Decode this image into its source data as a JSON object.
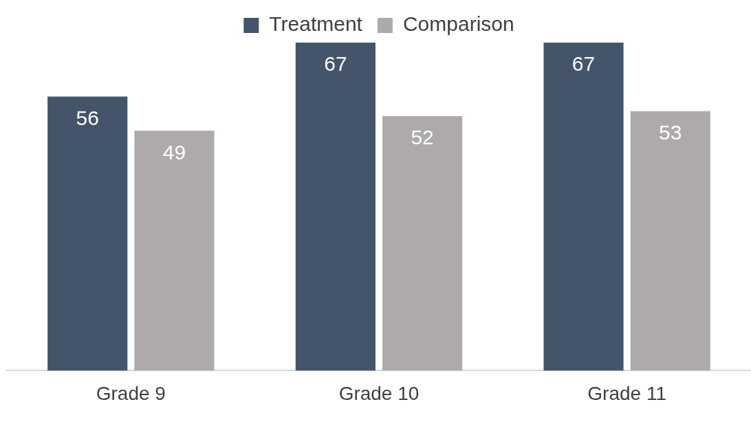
{
  "chart_data": {
    "type": "bar",
    "categories": [
      "Grade 9",
      "Grade 10",
      "Grade 11"
    ],
    "series": [
      {
        "name": "Treatment",
        "color": "#44546a",
        "values": [
          56,
          67,
          67
        ]
      },
      {
        "name": "Comparison",
        "color": "#aeaaaa",
        "values": [
          49,
          52,
          53
        ]
      }
    ],
    "data_labels": true,
    "legend": "top",
    "grid": false,
    "tick_labels": "x"
  }
}
